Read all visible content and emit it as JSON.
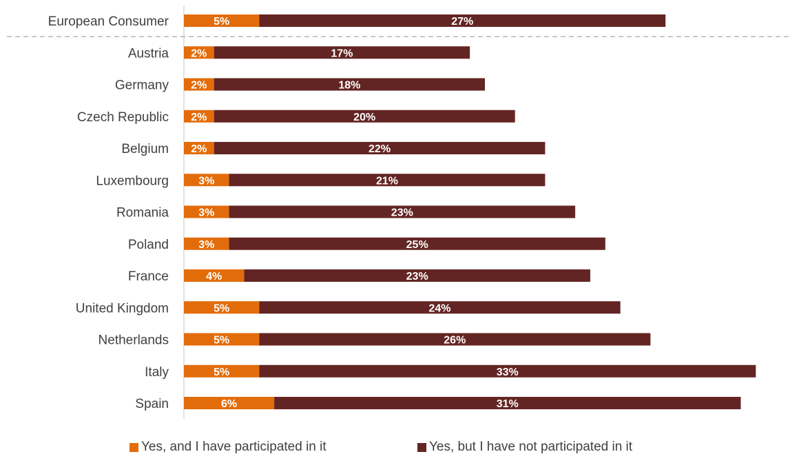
{
  "chart_data": {
    "type": "bar",
    "orientation": "horizontal",
    "stacked": true,
    "categories": [
      "European Consumer",
      "Austria",
      "Germany",
      "Czech Republic",
      "Belgium",
      "Luxembourg",
      "Romania",
      "Poland",
      "France",
      "United Kingdom",
      "Netherlands",
      "Italy",
      "Spain"
    ],
    "series": [
      {
        "name": "Yes, and I have participated in it",
        "color": "#E36C0A",
        "values": [
          5,
          2,
          2,
          2,
          2,
          3,
          3,
          3,
          4,
          5,
          5,
          5,
          6
        ]
      },
      {
        "name": "Yes, but I have not participated in it",
        "color": "#632523",
        "values": [
          27,
          17,
          18,
          20,
          22,
          21,
          23,
          25,
          23,
          24,
          26,
          33,
          31
        ]
      }
    ],
    "value_suffix": "%",
    "title": "",
    "xlabel": "",
    "ylabel": "",
    "separator_after_category": "European Consumer",
    "grid": false,
    "legend_position": "bottom"
  },
  "legend": {
    "s1_label": "Yes, and I have participated in it",
    "s2_label": "Yes, but I have not participated in it"
  }
}
